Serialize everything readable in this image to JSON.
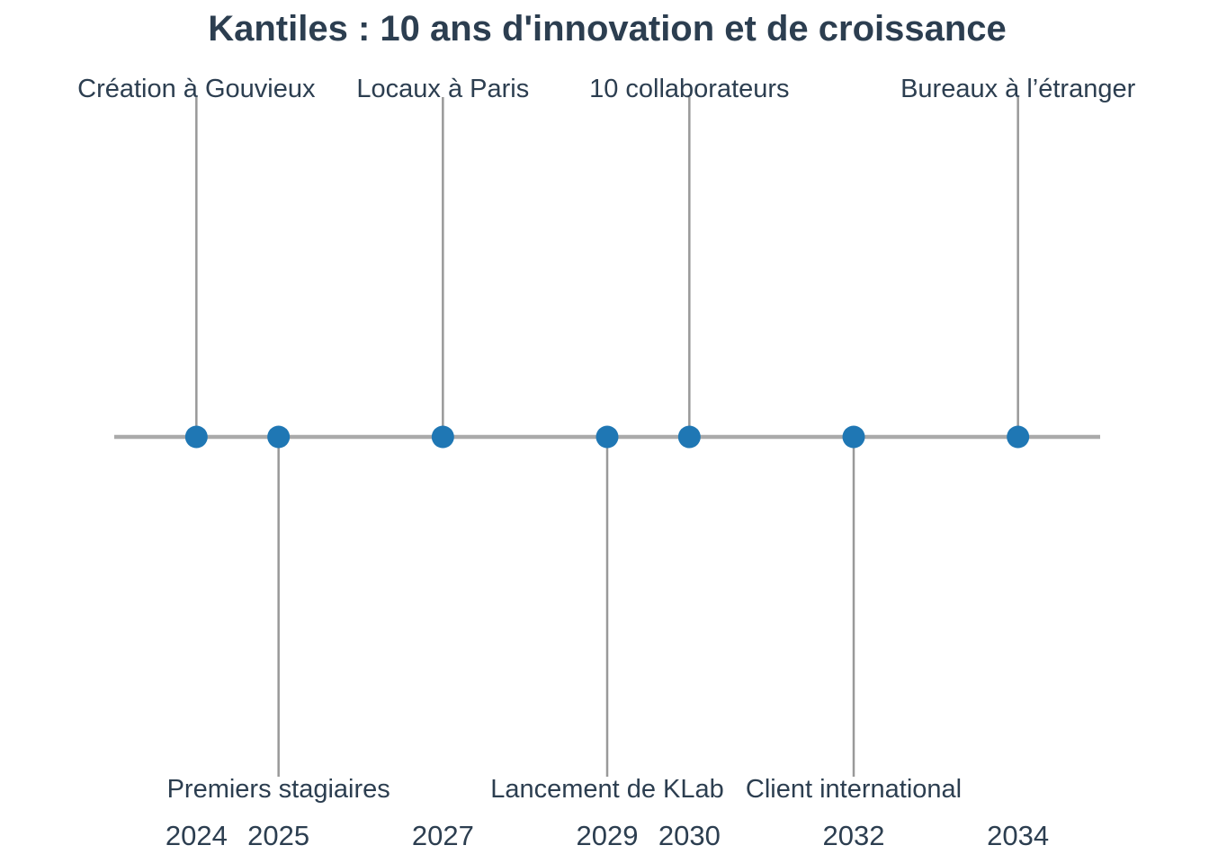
{
  "chart_data": {
    "type": "timeline",
    "title": "Kantiles : 10 ans d'innovation et de croissance",
    "xlim": [
      2023,
      2035
    ],
    "colors": {
      "title": "#2c3e50",
      "text": "#2c3e50",
      "point": "#1f77b4",
      "stem": "#999999",
      "axis": "#aaaaaa"
    },
    "events": [
      {
        "year": 2024,
        "label": "Création à Gouvieux",
        "side": "above"
      },
      {
        "year": 2025,
        "label": "Premiers stagiaires",
        "side": "below"
      },
      {
        "year": 2027,
        "label": "Locaux à Paris",
        "side": "above"
      },
      {
        "year": 2029,
        "label": "Lancement de KLab",
        "side": "below"
      },
      {
        "year": 2030,
        "label": "10 collaborateurs",
        "side": "above"
      },
      {
        "year": 2032,
        "label": "Client international",
        "side": "below"
      },
      {
        "year": 2034,
        "label": "Bureaux à l’étranger",
        "side": "above"
      }
    ],
    "x_tick_labels": [
      "2024",
      "2025",
      "2027",
      "2029",
      "2030",
      "2032",
      "2034"
    ],
    "grid": false,
    "legend": "none"
  }
}
